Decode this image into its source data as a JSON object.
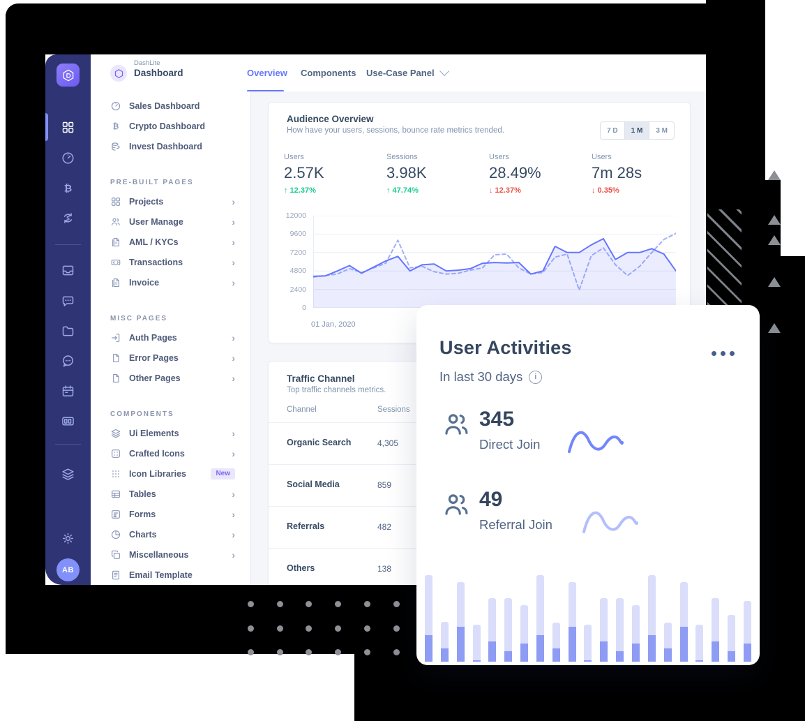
{
  "app": {
    "brand": {
      "name": "DashLite",
      "title": "Dashboard"
    },
    "tabs": [
      {
        "label": "Overview",
        "active": true
      },
      {
        "label": "Components",
        "active": false
      },
      {
        "label": "Use-Case Panel",
        "active": false,
        "has_dropdown": true
      }
    ],
    "rail": {
      "logo_icon": "dashlite-hexagon",
      "top_icons": [
        "grid",
        "speedometer",
        "bitcoin",
        "exchange"
      ],
      "mid_icons": [
        "inbox",
        "chat",
        "folder",
        "chat-round",
        "calendar",
        "board"
      ],
      "low_icons": [
        "layers"
      ],
      "bottom_icons": [
        "gear"
      ],
      "avatar_initials": "AB"
    },
    "menu": {
      "sections": [
        {
          "caption": "",
          "items": [
            {
              "icon": "speedometer",
              "label": "Sales Dashboard",
              "chevron": false
            },
            {
              "icon": "bitcoin",
              "label": "Crypto Dashboard",
              "chevron": false
            },
            {
              "icon": "coins",
              "label": "Invest Dashboard",
              "chevron": false
            }
          ]
        },
        {
          "caption": "PRE-BUILT PAGES",
          "items": [
            {
              "icon": "grid",
              "label": "Projects",
              "chevron": true
            },
            {
              "icon": "users",
              "label": "User Manage",
              "chevron": true
            },
            {
              "icon": "file",
              "label": "AML / KYCs",
              "chevron": true
            },
            {
              "icon": "transfer",
              "label": "Transactions",
              "chevron": true
            },
            {
              "icon": "file",
              "label": "Invoice",
              "chevron": true
            }
          ]
        },
        {
          "caption": "MISC PAGES",
          "items": [
            {
              "icon": "signin",
              "label": "Auth Pages",
              "chevron": true
            },
            {
              "icon": "page",
              "label": "Error Pages",
              "chevron": true
            },
            {
              "icon": "page",
              "label": "Other Pages",
              "chevron": true
            }
          ]
        },
        {
          "caption": "COMPONENTS",
          "items": [
            {
              "icon": "layers",
              "label": "Ui Elements",
              "chevron": true
            },
            {
              "icon": "iconbox",
              "label": "Crafted Icons",
              "chevron": true
            },
            {
              "icon": "dots9",
              "label": "Icon Libraries",
              "chevron": false,
              "badge": "New"
            },
            {
              "icon": "table",
              "label": "Tables",
              "chevron": true
            },
            {
              "icon": "form",
              "label": "Forms",
              "chevron": true
            },
            {
              "icon": "pie",
              "label": "Charts",
              "chevron": true
            },
            {
              "icon": "copy",
              "label": "Miscellaneous",
              "chevron": true
            },
            {
              "icon": "mail",
              "label": "Email Template",
              "chevron": false
            }
          ]
        }
      ]
    }
  },
  "audience": {
    "title": "Audience Overview",
    "subtitle": "How have your users, sessions, bounce rate metrics trended.",
    "range_buttons": [
      {
        "label": "7 D",
        "active": false
      },
      {
        "label": "1 M",
        "active": true
      },
      {
        "label": "3 M",
        "active": false
      }
    ],
    "metrics": [
      {
        "label": "Users",
        "value": "2.57K",
        "change": "12.37%",
        "direction": "up"
      },
      {
        "label": "Sessions",
        "value": "3.98K",
        "change": "47.74%",
        "direction": "up"
      },
      {
        "label": "Users",
        "value": "28.49%",
        "change": "12.37%",
        "direction": "down"
      },
      {
        "label": "Users",
        "value": "7m 28s",
        "change": "0.35%",
        "direction": "down"
      }
    ],
    "chart_data": {
      "type": "line",
      "title": "Audience Overview",
      "ylim": [
        0,
        12000
      ],
      "yticks": [
        0,
        2400,
        4800,
        7200,
        9600,
        12000
      ],
      "x_start_label": "01 Jan, 2020",
      "grid": true,
      "legend": "none",
      "series": [
        {
          "name": "current",
          "style": "solid",
          "color": "#6576ff",
          "fill_opacity": 0.13,
          "values": [
            4100,
            4150,
            4800,
            5500,
            4500,
            5300,
            6100,
            6700,
            4800,
            5600,
            5700,
            4800,
            4900,
            5100,
            5800,
            5900,
            5850,
            5900,
            4400,
            4800,
            8000,
            7200,
            7200,
            8200,
            9000,
            6300,
            7200,
            7200,
            7700,
            7000,
            4800
          ]
        },
        {
          "name": "previous",
          "style": "dashed",
          "color": "#a4aff8",
          "fill_opacity": 0,
          "values": [
            4000,
            4200,
            4400,
            5100,
            4600,
            5200,
            5800,
            8800,
            5200,
            5400,
            4700,
            4400,
            4500,
            4900,
            5200,
            6900,
            7000,
            5200,
            4400,
            4600,
            6600,
            7000,
            2300,
            6800,
            7800,
            5600,
            4200,
            5400,
            7200,
            8900,
            9700
          ]
        }
      ]
    }
  },
  "traffic": {
    "title": "Traffic Channel",
    "subtitle": "Top traffic channels metrics.",
    "columns": [
      "Channel",
      "Sessions"
    ],
    "rows": [
      {
        "channel": "Organic Search",
        "sessions": "4,305"
      },
      {
        "channel": "Social Media",
        "sessions": "859"
      },
      {
        "channel": "Referrals",
        "sessions": "482"
      },
      {
        "channel": "Others",
        "sessions": "138"
      }
    ]
  },
  "user_activities": {
    "title": "User Activities",
    "subtitle": "In last 30 days",
    "info_icon": "info-circle",
    "menu_icon": "ellipsis-dots",
    "stats": [
      {
        "icon": "users",
        "value": "345",
        "label": "Direct Join",
        "spark_color": "#7286fa"
      },
      {
        "icon": "users",
        "value": "49",
        "label": "Referral Join",
        "spark_color": "#b3bffc"
      }
    ],
    "chart_data": {
      "type": "bar",
      "stacked": true,
      "unit": "percent_of_max",
      "categories_count": 21,
      "series": [
        {
          "name": "total",
          "color": "#dadefb",
          "values": [
            100,
            46,
            92,
            43,
            73,
            73,
            65,
            100,
            45,
            92,
            43,
            73,
            73,
            65,
            100,
            45,
            92,
            43,
            73,
            54,
            70
          ]
        },
        {
          "name": "bottom-segment",
          "color": "#8e9cf4",
          "values": [
            31,
            15,
            40,
            2,
            23,
            12,
            21,
            31,
            15,
            40,
            2,
            23,
            12,
            21,
            31,
            15,
            40,
            2,
            23,
            12,
            21
          ]
        }
      ]
    }
  },
  "colors": {
    "primary": "#6576ff",
    "success": "#19cb8c",
    "danger": "#e85347",
    "rail_bg": "#2f3574",
    "text_dark": "#364a63",
    "text_mid": "#526484",
    "bar_light": "#dadefb",
    "bar_dark": "#8e9cf4",
    "decor_gray": "#8b9096"
  }
}
